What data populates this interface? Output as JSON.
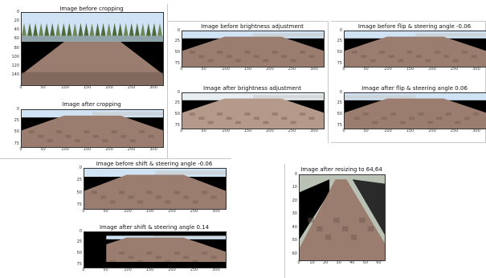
{
  "figure": {
    "colors": {
      "sky": "#cfe3f4",
      "road": "#9a7d6e",
      "road_dark": "#6f5a50",
      "grass": "#5d6b43",
      "black": "#000000",
      "border": "#333333"
    },
    "panels": [
      {
        "title": "Image before cropping",
        "image_kind": "full_scene",
        "x_ticks": [
          "0",
          "50",
          "100",
          "150",
          "200",
          "250",
          "300"
        ],
        "y_ticks": [
          "0",
          "20",
          "40",
          "60",
          "80",
          "100",
          "120",
          "140"
        ],
        "x_range": [
          0,
          320
        ],
        "y_range": [
          0,
          160
        ]
      },
      {
        "title": "Image after cropping",
        "image_kind": "cropped",
        "x_ticks": [
          "0",
          "50",
          "100",
          "150",
          "200",
          "250",
          "300"
        ],
        "y_ticks": [
          "0",
          "25",
          "50",
          "75"
        ],
        "x_range": [
          0,
          320
        ],
        "y_range": [
          0,
          80
        ]
      },
      {
        "title": "Image before brightness adjustment",
        "image_kind": "cropped",
        "x_ticks": [
          "0",
          "50",
          "100",
          "150",
          "200",
          "250",
          "300"
        ],
        "y_ticks": [
          "0",
          "25",
          "50",
          "75"
        ],
        "x_range": [
          0,
          320
        ],
        "y_range": [
          0,
          80
        ]
      },
      {
        "title": "Image after brightness adjustment",
        "image_kind": "cropped_bright",
        "x_ticks": [
          "0",
          "50",
          "100",
          "150",
          "200",
          "250",
          "300"
        ],
        "y_ticks": [
          "0",
          "25",
          "50",
          "75"
        ],
        "x_range": [
          0,
          320
        ],
        "y_range": [
          0,
          80
        ]
      },
      {
        "title": "Image before flip & steering angle -0.06",
        "image_kind": "cropped",
        "x_ticks": [
          "0",
          "50",
          "100",
          "150",
          "200",
          "250",
          "300"
        ],
        "y_ticks": [
          "0",
          "25",
          "50",
          "75"
        ],
        "x_range": [
          0,
          320
        ],
        "y_range": [
          0,
          80
        ]
      },
      {
        "title": "Image after flip & steering angle 0.06",
        "image_kind": "cropped_flipped",
        "x_ticks": [
          "0",
          "50",
          "100",
          "150",
          "200",
          "250",
          "300"
        ],
        "y_ticks": [
          "0",
          "25",
          "50",
          "75"
        ],
        "x_range": [
          0,
          320
        ],
        "y_range": [
          0,
          80
        ]
      },
      {
        "title": "Image before shift & steering angle -0.06",
        "image_kind": "cropped",
        "x_ticks": [
          "0",
          "50",
          "100",
          "150",
          "200",
          "250",
          "300"
        ],
        "y_ticks": [
          "0",
          "25",
          "50",
          "75"
        ],
        "x_range": [
          0,
          320
        ],
        "y_range": [
          0,
          80
        ]
      },
      {
        "title": "Image after shift & steering angle 0.14",
        "image_kind": "cropped_shifted",
        "x_ticks": [
          "0",
          "50",
          "100",
          "150",
          "200",
          "250",
          "300"
        ],
        "y_ticks": [
          "0",
          "25",
          "50",
          "75"
        ],
        "x_range": [
          0,
          320
        ],
        "y_range": [
          0,
          80
        ]
      },
      {
        "title": "Image after resizing to 64,64",
        "image_kind": "resized",
        "x_ticks": [
          "0",
          "10",
          "20",
          "30",
          "40",
          "50",
          "60"
        ],
        "y_ticks": [
          "0",
          "10",
          "20",
          "30",
          "40",
          "50",
          "60"
        ],
        "x_range": [
          0,
          64
        ],
        "y_range": [
          0,
          64
        ]
      }
    ]
  }
}
